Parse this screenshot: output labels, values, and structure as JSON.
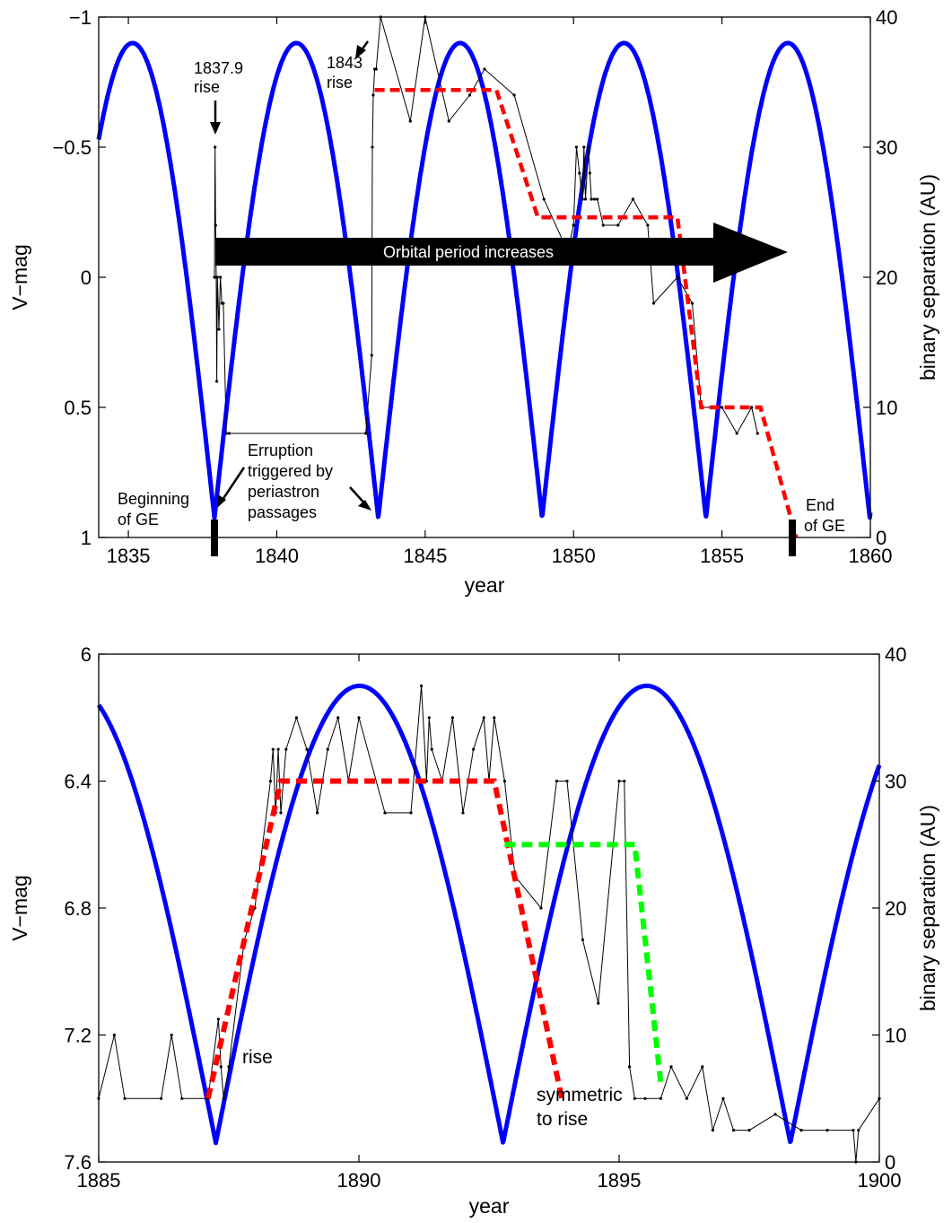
{
  "chart_data": [
    {
      "type": "line",
      "xlabel": "year",
      "ylabel": "V−mag",
      "y2label": "binary separation (AU)",
      "xlim": [
        1834,
        1860
      ],
      "ylim": [
        -1,
        1
      ],
      "y_reversed": true,
      "y2lim": [
        0,
        40
      ],
      "xticks": [
        "1835",
        "1840",
        "1845",
        "1850",
        "1855",
        "1860"
      ],
      "yticks": [
        "−1",
        "−0.5",
        "0",
        "0.5",
        "1"
      ],
      "y2ticks": [
        "0",
        "10",
        "20",
        "30",
        "40"
      ],
      "separation": {
        "color": "#0000ff",
        "period": 5.52,
        "periastron": 1837.9,
        "min": 1.5,
        "max": 38
      },
      "series": [
        {
          "role": "light-curve",
          "color": "#000000",
          "x": [
            1837.9,
            1837.92,
            1837.94,
            1837.96,
            1837.98,
            1838.0,
            1838.05,
            1838.1,
            1838.15,
            1838.2,
            1838.3,
            1838.4,
            1843.0,
            1843.2,
            1843.22,
            1843.25,
            1843.3,
            1843.35,
            1843.5,
            1844.5,
            1845.0,
            1845.8,
            1846.5,
            1847.0,
            1848.0,
            1849.0,
            1849.8,
            1850.0,
            1850.1,
            1850.2,
            1850.3,
            1850.35,
            1850.4,
            1850.5,
            1850.55,
            1850.6,
            1850.7,
            1850.8,
            1851.0,
            1851.5,
            1852.0,
            1852.5,
            1852.7,
            1853.5,
            1854.0,
            1854.3,
            1855.0,
            1855.5,
            1856.0,
            1856.2
          ],
          "y": [
            0.0,
            -0.5,
            -0.2,
            0.0,
            0.4,
            0.0,
            0.2,
            0.0,
            0.1,
            0.1,
            0.6,
            0.6,
            0.6,
            0.3,
            -0.5,
            -0.7,
            -0.8,
            -0.8,
            -1.0,
            -0.6,
            -1.0,
            -0.6,
            -0.7,
            -0.8,
            -0.7,
            -0.3,
            -0.1,
            -0.2,
            -0.5,
            -0.4,
            -0.3,
            -0.5,
            -0.3,
            -0.5,
            -0.4,
            -0.3,
            -0.3,
            -0.3,
            -0.2,
            -0.2,
            -0.3,
            -0.2,
            0.1,
            0.0,
            0.1,
            0.5,
            0.5,
            0.6,
            0.5,
            0.6
          ]
        },
        {
          "role": "step-model",
          "color": "#ff0000",
          "x": [
            1843.3,
            1847.4,
            1848.8,
            1853.5,
            1854.3,
            1856.3,
            1857.5
          ],
          "y": [
            -0.72,
            -0.72,
            -0.23,
            -0.23,
            0.5,
            0.5,
            1.0
          ]
        }
      ],
      "annotations": [
        {
          "lines": [
            "1837.9",
            "rise"
          ]
        },
        {
          "lines": [
            "1843",
            "rise"
          ]
        },
        {
          "lines": [
            "Erruption",
            "triggered by",
            "periastron",
            "passages"
          ]
        },
        {
          "lines": [
            "Beginning",
            "of GE"
          ]
        },
        {
          "lines": [
            "End",
            "of GE"
          ]
        },
        {
          "lines": [
            "Orbital period increases"
          ]
        }
      ]
    },
    {
      "type": "line",
      "xlabel": "year",
      "ylabel": "V−mag",
      "y2label": "binary separation (AU)",
      "xlim": [
        1885,
        1900
      ],
      "ylim": [
        6,
        7.6
      ],
      "y_reversed": true,
      "y2lim": [
        0,
        40
      ],
      "xticks": [
        "1885",
        "1890",
        "1895",
        "1900"
      ],
      "yticks": [
        "6",
        "6.4",
        "6.8",
        "7.2",
        "7.6"
      ],
      "y2ticks": [
        "0",
        "10",
        "20",
        "30",
        "40"
      ],
      "separation": {
        "color": "#0000ff",
        "period": 5.52,
        "periastron": 1887.25,
        "min": 1.5,
        "max": 37.5
      },
      "series": [
        {
          "role": "light-curve",
          "color": "#000000",
          "x": [
            1885.0,
            1885.3,
            1885.5,
            1886.2,
            1886.4,
            1886.6,
            1887.1,
            1887.3,
            1887.35,
            1887.4,
            1887.5,
            1887.8,
            1888.0,
            1888.3,
            1888.35,
            1888.4,
            1888.45,
            1888.5,
            1888.6,
            1888.8,
            1889.0,
            1889.2,
            1889.4,
            1889.6,
            1889.8,
            1890.0,
            1890.5,
            1891.0,
            1891.2,
            1891.3,
            1891.35,
            1891.4,
            1891.6,
            1891.8,
            1892.0,
            1892.2,
            1892.4,
            1892.5,
            1892.6,
            1892.8,
            1893.0,
            1893.5,
            1893.8,
            1894.0,
            1894.3,
            1894.6,
            1895.0,
            1895.1,
            1895.2,
            1895.3,
            1895.5,
            1895.8,
            1896.0,
            1896.3,
            1896.6,
            1896.8,
            1897.0,
            1897.2,
            1897.5,
            1898.0,
            1898.5,
            1899.0,
            1899.5,
            1899.55,
            1899.6,
            1900.0
          ],
          "y": [
            7.4,
            7.2,
            7.4,
            7.4,
            7.2,
            7.4,
            7.4,
            7.15,
            7.3,
            7.4,
            7.3,
            6.9,
            6.8,
            6.4,
            6.3,
            6.5,
            6.3,
            6.5,
            6.3,
            6.2,
            6.3,
            6.5,
            6.3,
            6.2,
            6.4,
            6.2,
            6.5,
            6.5,
            6.1,
            6.4,
            6.2,
            6.3,
            6.4,
            6.2,
            6.5,
            6.3,
            6.2,
            6.4,
            6.2,
            6.4,
            6.7,
            6.8,
            6.4,
            6.4,
            6.9,
            7.1,
            6.4,
            6.4,
            7.3,
            7.4,
            7.4,
            7.4,
            7.3,
            7.4,
            7.3,
            7.5,
            7.4,
            7.5,
            7.5,
            7.45,
            7.5,
            7.5,
            7.5,
            7.6,
            7.5,
            7.4
          ]
        },
        {
          "role": "rise-model",
          "color": "#ff0000",
          "x": [
            1887.1,
            1888.5,
            1892.6,
            1893.9
          ],
          "y": [
            7.4,
            6.4,
            6.4,
            7.4
          ]
        },
        {
          "role": "symmetric-model",
          "color": "#00ff00",
          "x": [
            1892.8,
            1895.3,
            1895.8
          ],
          "y": [
            6.6,
            6.6,
            7.35
          ]
        }
      ],
      "annotations": [
        {
          "lines": [
            "rise"
          ]
        },
        {
          "lines": [
            "symmetric",
            "to rise"
          ]
        }
      ]
    }
  ]
}
